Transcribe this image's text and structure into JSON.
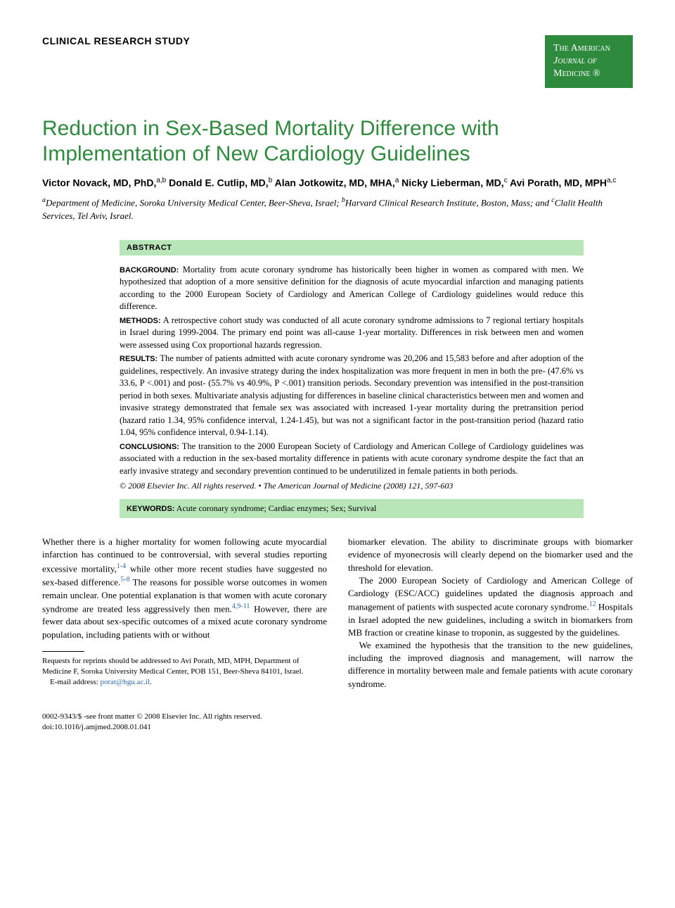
{
  "header": {
    "section_label": "CLINICAL RESEARCH STUDY",
    "journal_badge": {
      "line1": "The American",
      "line2": "Journal of",
      "line3": "Medicine ®",
      "bg_color": "#2e8b3e",
      "text_color": "#ffffff"
    }
  },
  "title": "Reduction in Sex-Based Mortality Difference with Implementation of New Cardiology Guidelines",
  "title_color": "#2e8b3e",
  "authors_html": "Victor Novack, MD, PhD,<sup>a,b</sup> Donald E. Cutlip, MD,<sup>b</sup> Alan Jotkowitz, MD, MHA,<sup>a</sup> Nicky Lieberman, MD,<sup>c</sup> Avi Porath, MD, MPH<sup>a,c</sup>",
  "affiliations_html": "<sup>a</sup>Department of Medicine, Soroka University Medical Center, Beer-Sheva, Israel; <sup>b</sup>Harvard Clinical Research Institute, Boston, Mass; and <sup>c</sup>Clalit Health Services, Tel Aviv, Israel.",
  "abstract": {
    "label": "ABSTRACT",
    "background_label": "BACKGROUND:",
    "background": "Mortality from acute coronary syndrome has historically been higher in women as compared with men. We hypothesized that adoption of a more sensitive definition for the diagnosis of acute myocardial infarction and managing patients according to the 2000 European Society of Cardiology and American College of Cardiology guidelines would reduce this difference.",
    "methods_label": "METHODS:",
    "methods": "A retrospective cohort study was conducted of all acute coronary syndrome admissions to 7 regional tertiary hospitals in Israel during 1999-2004. The primary end point was all-cause 1-year mortality. Differences in risk between men and women were assessed using Cox proportional hazards regression.",
    "results_label": "RESULTS:",
    "results": "The number of patients admitted with acute coronary syndrome was 20,206 and 15,583 before and after adoption of the guidelines, respectively. An invasive strategy during the index hospitalization was more frequent in men in both the pre- (47.6% vs 33.6, P <.001) and post- (55.7% vs 40.9%, P <.001) transition periods. Secondary prevention was intensified in the post-transition period in both sexes. Multivariate analysis adjusting for differences in baseline clinical characteristics between men and women and invasive strategy demonstrated that female sex was associated with increased 1-year mortality during the pretransition period (hazard ratio 1.34, 95% confidence interval, 1.24-1.45), but was not a significant factor in the post-transition period (hazard ratio 1.04, 95% confidence interval, 0.94-1.14).",
    "conclusions_label": "CONCLUSIONS:",
    "conclusions": "The transition to the 2000 European Society of Cardiology and American College of Cardiology guidelines was associated with a reduction in the sex-based mortality difference in patients with acute coronary syndrome despite the fact that an early invasive strategy and secondary prevention continued to be underutilized in female patients in both periods.",
    "copyright": "© 2008 Elsevier Inc. All rights reserved. • The American Journal of Medicine (2008) 121, 597-603",
    "keywords_label": "KEYWORDS:",
    "keywords": "Acute coronary syndrome; Cardiac enzymes; Sex; Survival",
    "highlight_bg": "#b8e6b8"
  },
  "body": {
    "left": {
      "p1_html": "Whether there is a higher mortality for women following acute myocardial infarction has continued to be controversial, with several studies reporting excessive mortality,<sup>1-4</sup> while other more recent studies have suggested no sex-based difference.<sup>5-8</sup> The reasons for possible worse outcomes in women remain unclear. One potential explanation is that women with acute coronary syndrome are treated less aggressively then men.<sup>4,9-11</sup> However, there are fewer data about sex-specific outcomes of a mixed acute coronary syndrome population, including patients with or without"
    },
    "right": {
      "p1": "biomarker elevation. The ability to discriminate groups with biomarker evidence of myonecrosis will clearly depend on the biomarker used and the threshold for elevation.",
      "p2_html": "The 2000 European Society of Cardiology and American College of Cardiology (ESC/ACC) guidelines updated the diagnosis approach and management of patients with suspected acute coronary syndrome.<sup>12</sup> Hospitals in Israel adopted the new guidelines, including a switch in biomarkers from MB fraction or creatine kinase to troponin, as suggested by the guidelines.",
      "p3": "We examined the hypothesis that the transition to the new guidelines, including the improved diagnosis and management, will narrow the difference in mortality between male and female patients with acute coronary syndrome."
    }
  },
  "footnotes": {
    "reprint": "Requests for reprints should be addressed to Avi Porath, MD, MPH, Department of Medicine F, Soroka University Medical Center, POB 151, Beer-Sheva 84101, Israel.",
    "email_label": "E-mail address:",
    "email": "porat@bgu.ac.il"
  },
  "bottom": {
    "issn": "0002-9343/$ -see front matter © 2008 Elsevier Inc. All rights reserved.",
    "doi": "doi:10.1016/j.amjmed.2008.01.041"
  },
  "colors": {
    "link": "#2e68b3",
    "text": "#000000",
    "background": "#ffffff"
  },
  "typography": {
    "body_font": "Times New Roman",
    "heading_font": "Arial",
    "title_fontsize": 30,
    "body_fontsize": 13,
    "abstract_fontsize": 12.5,
    "footnote_fontsize": 11
  }
}
